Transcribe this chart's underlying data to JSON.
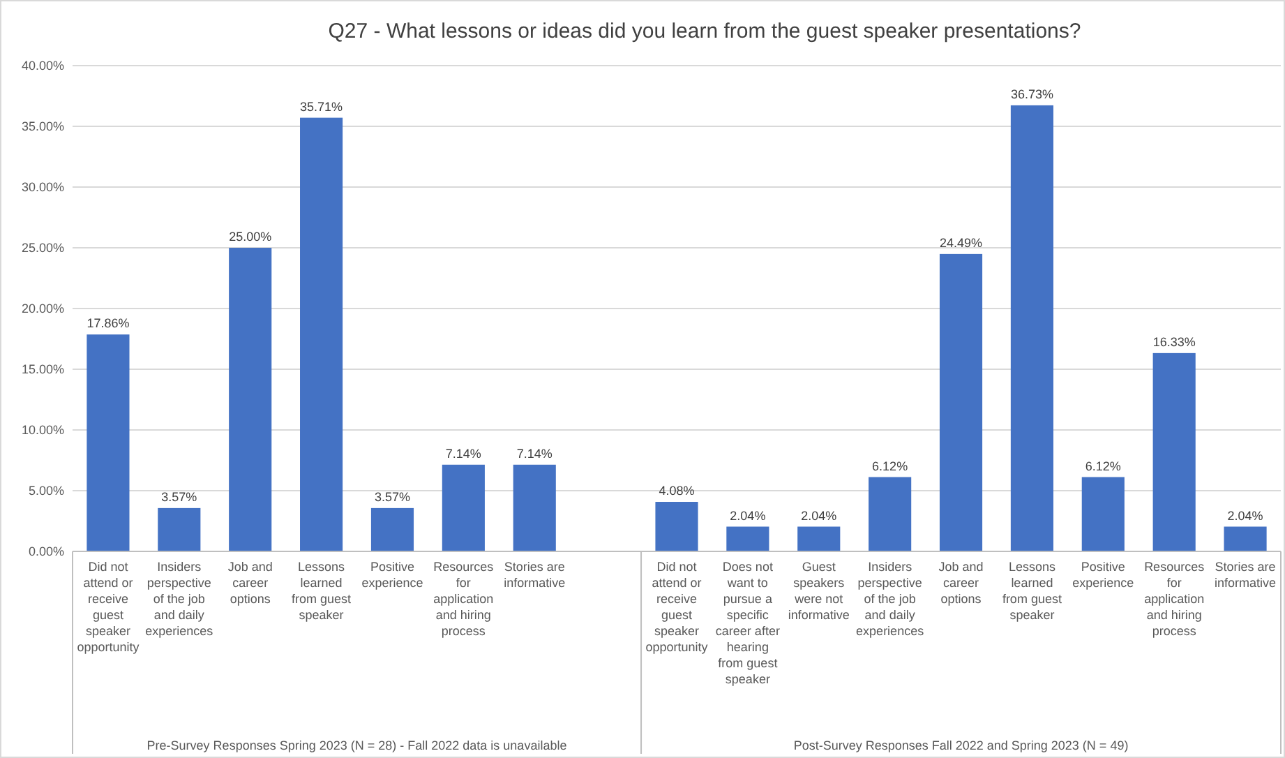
{
  "chart_data": {
    "type": "bar",
    "title": "Q27 - What lessons or ideas did you learn from the guest speaker presentations?",
    "categories": [
      "Did not attend or receive guest speaker opportunity",
      "Insiders perspective of the job and daily experiences",
      "Job and career options",
      "Lessons learned from guest speaker",
      "Positive experience",
      "Resources for application and hiring process",
      "Stories are informative",
      null,
      "Did not attend or receive guest speaker opportunity",
      "Does not want to pursue a specific career after hearing from guest speaker",
      "Guest speakers were not informative",
      "Insiders perspective of the job and daily experiences",
      "Job and career options",
      "Lessons learned from guest speaker",
      "Positive experience",
      "Resources for application and hiring process",
      "Stories are informative"
    ],
    "values": [
      17.86,
      3.57,
      25.0,
      35.71,
      3.57,
      7.14,
      7.14,
      null,
      4.08,
      2.04,
      2.04,
      6.12,
      24.49,
      36.73,
      6.12,
      16.33,
      2.04
    ],
    "value_labels": [
      "17.86%",
      "3.57%",
      "25.00%",
      "35.71%",
      "3.57%",
      "7.14%",
      "7.14%",
      null,
      "4.08%",
      "2.04%",
      "2.04%",
      "6.12%",
      "24.49%",
      "36.73%",
      "6.12%",
      "16.33%",
      "2.04%"
    ],
    "color": "#4472c4",
    "ylim": [
      0,
      40
    ],
    "yticks": [
      {
        "value": 0,
        "label": "0.00%"
      },
      {
        "value": 5,
        "label": "5.00%"
      },
      {
        "value": 10,
        "label": "10.00%"
      },
      {
        "value": 15,
        "label": "15.00%"
      },
      {
        "value": 20,
        "label": "20.00%"
      },
      {
        "value": 25,
        "label": "25.00%"
      },
      {
        "value": 30,
        "label": "30.00%"
      },
      {
        "value": 35,
        "label": "35.00%"
      },
      {
        "value": 40,
        "label": "40.00%"
      }
    ],
    "grid": "y",
    "annotations": [
      "Pre-Survey Responses Spring 2023 (N = 28) - Fall 2022 data is unavailable",
      "Post-Survey Responses Fall 2022 and Spring 2023 (N = 49)"
    ]
  }
}
